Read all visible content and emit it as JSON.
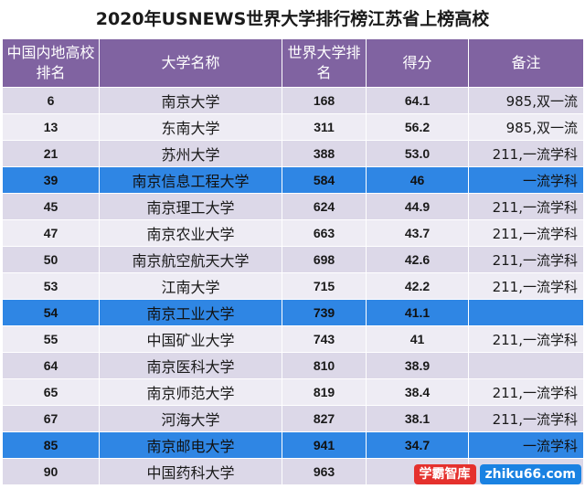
{
  "title": "2020年USNEWS世界大学排行榜江苏省上榜高校",
  "headers": [
    "中国内地高校排名",
    "大学名称",
    "世界大学排名",
    "得分",
    "备注"
  ],
  "rows": [
    {
      "rank": "6",
      "name": "南京大学",
      "world": "168",
      "score": "64.1",
      "note": "985,双一流",
      "highlight": false
    },
    {
      "rank": "13",
      "name": "东南大学",
      "world": "311",
      "score": "56.2",
      "note": "985,双一流",
      "highlight": false
    },
    {
      "rank": "21",
      "name": "苏州大学",
      "world": "388",
      "score": "53.0",
      "note": "211,一流学科",
      "highlight": false
    },
    {
      "rank": "39",
      "name": "南京信息工程大学",
      "world": "584",
      "score": "46",
      "note": "一流学科",
      "highlight": true
    },
    {
      "rank": "45",
      "name": "南京理工大学",
      "world": "624",
      "score": "44.9",
      "note": "211,一流学科",
      "highlight": false
    },
    {
      "rank": "47",
      "name": "南京农业大学",
      "world": "663",
      "score": "43.7",
      "note": "211,一流学科",
      "highlight": false
    },
    {
      "rank": "50",
      "name": "南京航空航天大学",
      "world": "698",
      "score": "42.6",
      "note": "211,一流学科",
      "highlight": false
    },
    {
      "rank": "53",
      "name": "江南大学",
      "world": "715",
      "score": "42.2",
      "note": "211,一流学科",
      "highlight": false
    },
    {
      "rank": "54",
      "name": "南京工业大学",
      "world": "739",
      "score": "41.1",
      "note": "",
      "highlight": true
    },
    {
      "rank": "55",
      "name": "中国矿业大学",
      "world": "743",
      "score": "41",
      "note": "211,一流学科",
      "highlight": false
    },
    {
      "rank": "64",
      "name": "南京医科大学",
      "world": "810",
      "score": "38.9",
      "note": "",
      "highlight": false
    },
    {
      "rank": "65",
      "name": "南京师范大学",
      "world": "819",
      "score": "38.4",
      "note": "211,一流学科",
      "highlight": false
    },
    {
      "rank": "67",
      "name": "河海大学",
      "world": "827",
      "score": "38.1",
      "note": "211,一流学科",
      "highlight": false
    },
    {
      "rank": "85",
      "name": "南京邮电大学",
      "world": "941",
      "score": "34.7",
      "note": "一流学科",
      "highlight": true
    },
    {
      "rank": "90",
      "name": "中国药科大学",
      "world": "963",
      "score": "",
      "note": "",
      "highlight": false
    }
  ],
  "watermark": {
    "logo_text": "学霸智库",
    "url_text": "zhiku66.com"
  }
}
